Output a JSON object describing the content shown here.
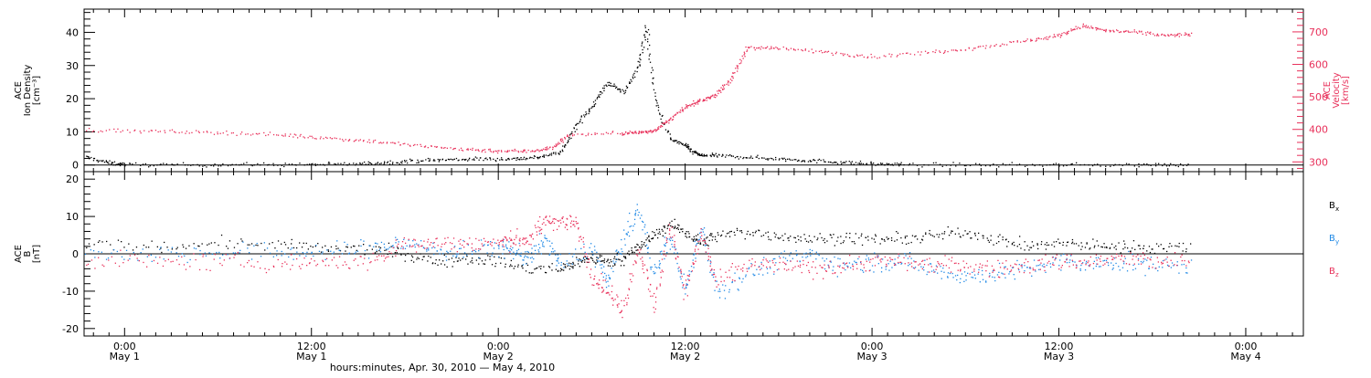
{
  "chart_data": {
    "type": "scatter",
    "xlabel": "hours:minutes, Apr. 30, 2010 — May  4, 2010",
    "x_ticks": [
      {
        "time": "0:00",
        "day": "May 1",
        "hours": 0
      },
      {
        "time": "12:00",
        "day": "May 1",
        "hours": 12
      },
      {
        "time": "0:00",
        "day": "May 2",
        "hours": 24
      },
      {
        "time": "12:00",
        "day": "May 2",
        "hours": 36
      },
      {
        "time": "0:00",
        "day": "May 3",
        "hours": 48
      },
      {
        "time": "12:00",
        "day": "May 3",
        "hours": 60
      },
      {
        "time": "0:00",
        "day": "May 4",
        "hours": 72
      }
    ],
    "xlim": [
      -2.6,
      75.7
    ],
    "panels": [
      {
        "id": "top",
        "left_axis": {
          "label_lines": [
            "ACE",
            "Ion Density",
            "[cm⁻³]"
          ],
          "ylim": [
            -2,
            47
          ],
          "ticks": [
            0,
            10,
            20,
            30,
            40
          ],
          "color": "#000000"
        },
        "right_axis": {
          "label_lines": [
            "ACE",
            "Velocity",
            "[km/s]"
          ],
          "ylim": [
            270,
            770
          ],
          "ticks": [
            300,
            400,
            500,
            600,
            700
          ],
          "color": "#e8305a"
        },
        "series": [
          {
            "key": "density",
            "axis": "left",
            "color": "#000000",
            "x": [
              -2.5,
              -1,
              0,
              4,
              8,
              12,
              15,
              17,
              19,
              21,
              23,
              25,
              26.5,
              28,
              29,
              30,
              31,
              32,
              33,
              33.5,
              34,
              35,
              36,
              36.5,
              37,
              38,
              40,
              42,
              44,
              46,
              48,
              50,
              55,
              60,
              65,
              68.5
            ],
            "y": [
              2.5,
              0.8,
              0.3,
              0.2,
              0.3,
              0.3,
              0.5,
              1,
              1.5,
              1.8,
              2,
              2,
              2.5,
              4,
              12,
              18,
              25,
              22,
              30,
              42,
              20,
              8,
              6,
              4,
              3,
              3,
              2.5,
              2,
              1.5,
              1,
              0.5,
              0.3,
              0.2,
              0.2,
              0.2,
              0.2
            ],
            "noise": 0.6,
            "points_per_seg": 22
          },
          {
            "key": "velocity",
            "axis": "right",
            "color": "#e8305a",
            "x": [
              -2.5,
              2,
              6,
              10,
              13,
              16,
              19,
              22,
              24,
              26,
              27.5,
              28.5,
              32,
              33,
              34,
              35,
              36,
              37,
              38,
              39,
              40,
              42,
              45,
              48,
              52,
              55,
              58,
              60,
              61.5,
              63,
              65,
              67,
              68.5
            ],
            "y": [
              400,
              395,
              392,
              385,
              375,
              365,
              350,
              340,
              335,
              335,
              345,
              385,
              390,
              392,
              398,
              430,
              470,
              490,
              510,
              560,
              655,
              650,
              640,
              625,
              640,
              655,
              675,
              690,
              720,
              705,
              700,
              690,
              695
            ],
            "noise": 6,
            "points_per_seg": 24
          }
        ]
      },
      {
        "id": "bottom",
        "left_axis": {
          "label_lines": [
            "ACE",
            "B",
            "[nT]"
          ],
          "ylim": [
            -22,
            22
          ],
          "ticks": [
            -20,
            -10,
            0,
            10,
            20
          ],
          "color": "#000000"
        },
        "legend": [
          {
            "name": "Bx",
            "base": "B",
            "sub": "x",
            "color": "#000000"
          },
          {
            "name": "By",
            "base": "B",
            "sub": "y",
            "color": "#1e88e5"
          },
          {
            "name": "Bz",
            "base": "B",
            "sub": "z",
            "color": "#e8305a"
          }
        ],
        "series": [
          {
            "key": "Bx",
            "color": "#000000",
            "x": [
              -2.5,
              2,
              6,
              10,
              13,
              16,
              18,
              20,
              22,
              24,
              26,
              28,
              29,
              30,
              31,
              32,
              33,
              34,
              35,
              36,
              37,
              38,
              40,
              42,
              44,
              46,
              48,
              50,
              52,
              54,
              56,
              58,
              60,
              62,
              64,
              66,
              68.5
            ],
            "y": [
              2.5,
              2,
              3,
              2.5,
              1.5,
              1.5,
              0,
              -2,
              -1,
              -2,
              -4,
              -4,
              -2,
              -1,
              -2,
              -1,
              2,
              5,
              8,
              6,
              3,
              5,
              6,
              5,
              4,
              4.5,
              4,
              4,
              5,
              6,
              4,
              2,
              3,
              2.5,
              2,
              2,
              2
            ],
            "noise": 1.6,
            "points_per_seg": 20
          },
          {
            "key": "By",
            "color": "#1e88e5",
            "x": [
              -2.5,
              2,
              6,
              10,
              13,
              16,
              18,
              20,
              22,
              24,
              25,
              26,
              27,
              28,
              30,
              31,
              32,
              33,
              34,
              35,
              36,
              37,
              38,
              40,
              42,
              44,
              46,
              48,
              50,
              52,
              54,
              56,
              58,
              60,
              62,
              64,
              66,
              68.5
            ],
            "y": [
              0.5,
              0,
              0.5,
              0.5,
              0.5,
              2,
              3,
              1,
              0.5,
              2,
              1,
              -1,
              4,
              -3,
              2,
              -8,
              4,
              12,
              -5,
              5,
              -10,
              8,
              -10,
              -5,
              -2,
              0,
              -3,
              -2,
              -2,
              -4,
              -6,
              -5,
              -4,
              -2,
              -3,
              -2,
              -3,
              -3
            ],
            "noise": 2.6,
            "points_per_seg": 22
          },
          {
            "key": "Bz",
            "color": "#e8305a",
            "x": [
              -2.5,
              2,
              6,
              10,
              13,
              16,
              18,
              20,
              22,
              24,
              25,
              26,
              27,
              28,
              29,
              30,
              31,
              32,
              33,
              34,
              35,
              36,
              37,
              38,
              40,
              42,
              44,
              46,
              48,
              50,
              52,
              54,
              56,
              58,
              60,
              62,
              64,
              66,
              68.5
            ],
            "y": [
              -1.5,
              -2,
              -2,
              -2.5,
              -2,
              -2,
              3,
              3,
              3,
              3,
              4,
              4,
              9,
              9,
              8,
              -5,
              -10,
              -15,
              2,
              -14,
              8,
              -10,
              6,
              -8,
              -3,
              -3,
              -4,
              -3,
              -2,
              -2,
              -3,
              -3,
              -4,
              -3,
              -2,
              -2,
              -1,
              -2,
              -2
            ],
            "noise": 2.4,
            "points_per_seg": 22
          }
        ]
      }
    ]
  }
}
